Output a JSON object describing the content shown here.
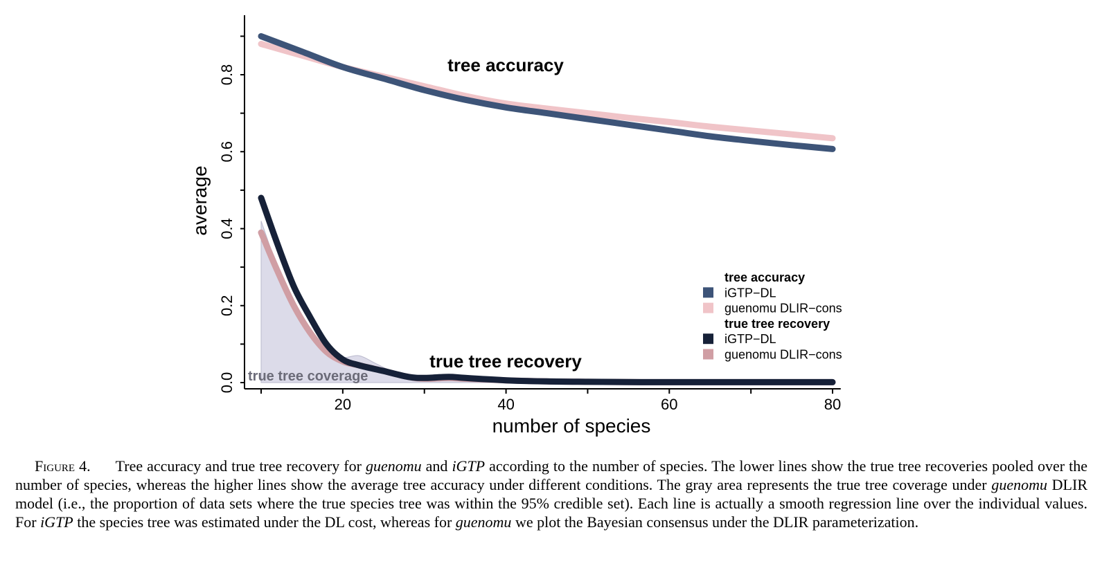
{
  "chart_data": {
    "type": "line",
    "xlabel": "number of species",
    "ylabel": "average",
    "xlim": [
      8,
      81
    ],
    "ylim": [
      -0.02,
      0.98
    ],
    "xticks": [
      10,
      20,
      30,
      40,
      50,
      60,
      70,
      80
    ],
    "xtick_labels": [
      "",
      "20",
      "",
      "40",
      "",
      "60",
      "",
      "80"
    ],
    "yticks": [
      0.0,
      0.1,
      0.2,
      0.3,
      0.4,
      0.5,
      0.6,
      0.7,
      0.8,
      0.9
    ],
    "ytick_labels": [
      "0.0",
      "",
      "0.2",
      "",
      "0.4",
      "",
      "0.6",
      "",
      "0.8",
      ""
    ],
    "grid": false,
    "legend_position": "right",
    "annotations": {
      "tree_accuracy": "tree accuracy",
      "true_tree_recovery": "true tree recovery",
      "true_tree_coverage": "true tree coverage"
    },
    "legend": {
      "group1_title": "tree accuracy",
      "group2_title": "true tree recovery"
    },
    "series": [
      {
        "name": "iGTP−DL",
        "group": "tree accuracy",
        "color": "#3d5478",
        "x": [
          10,
          15,
          20,
          25,
          30,
          35,
          40,
          45,
          50,
          55,
          60,
          65,
          70,
          75,
          80
        ],
        "y": [
          0.9,
          0.86,
          0.82,
          0.79,
          0.76,
          0.735,
          0.715,
          0.7,
          0.685,
          0.67,
          0.655,
          0.64,
          0.628,
          0.617,
          0.607
        ]
      },
      {
        "name": "guenomu DLIR−cons",
        "group": "tree accuracy",
        "color": "#f0c4c8",
        "x": [
          10,
          15,
          20,
          25,
          30,
          35,
          40,
          45,
          50,
          55,
          60,
          65,
          70,
          75,
          80
        ],
        "y": [
          0.88,
          0.85,
          0.82,
          0.795,
          0.77,
          0.745,
          0.725,
          0.712,
          0.7,
          0.688,
          0.677,
          0.665,
          0.655,
          0.645,
          0.635
        ]
      },
      {
        "name": "iGTP−DL",
        "group": "true tree recovery",
        "color": "#162138",
        "x": [
          10,
          12,
          14,
          16,
          18,
          20,
          22,
          25,
          28,
          30,
          33,
          35,
          40,
          45,
          50,
          60,
          70,
          80
        ],
        "y": [
          0.48,
          0.36,
          0.25,
          0.17,
          0.1,
          0.06,
          0.045,
          0.03,
          0.015,
          0.012,
          0.015,
          0.012,
          0.006,
          0.003,
          0.002,
          0.001,
          0.001,
          0.001
        ]
      },
      {
        "name": "guenomu DLIR−cons",
        "group": "true tree recovery",
        "color": "#d09ea4",
        "x": [
          10,
          12,
          14,
          16,
          18,
          20,
          22,
          25,
          28,
          30,
          33,
          35,
          40,
          45,
          50,
          60,
          70,
          80
        ],
        "y": [
          0.39,
          0.29,
          0.2,
          0.13,
          0.08,
          0.055,
          0.045,
          0.03,
          0.015,
          0.01,
          0.012,
          0.01,
          0.006,
          0.003,
          0.002,
          0.001,
          0.001,
          0.001
        ]
      }
    ],
    "area": {
      "name": "true tree coverage",
      "color": "#dcdbe9",
      "x": [
        10,
        12,
        14,
        16,
        18,
        20,
        22,
        24,
        26,
        28,
        30,
        35,
        40,
        45,
        50,
        60,
        70,
        80
      ],
      "y": [
        0.42,
        0.3,
        0.2,
        0.13,
        0.08,
        0.065,
        0.07,
        0.05,
        0.03,
        0.02,
        0.015,
        0.01,
        0.006,
        0.003,
        0.002,
        0.001,
        0.001,
        0.001
      ]
    }
  },
  "caption": {
    "label": "Figure 4.",
    "segments": [
      {
        "text": "Tree accuracy and true tree recovery for ",
        "italic": false
      },
      {
        "text": "guenomu",
        "italic": true
      },
      {
        "text": " and ",
        "italic": false
      },
      {
        "text": "iGTP",
        "italic": true
      },
      {
        "text": " according to the number of species. The lower lines show the true tree recoveries pooled over the number of species, whereas the higher lines show the average tree accuracy under different conditions. The gray area represents the true tree coverage under ",
        "italic": false
      },
      {
        "text": "guenomu",
        "italic": true
      },
      {
        "text": " DLIR model (i.e., the proportion of data sets where the true species tree was within the 95% credible set). Each line is actually a smooth regression line over the individual values. For ",
        "italic": false
      },
      {
        "text": "iGTP",
        "italic": true
      },
      {
        "text": " the species tree was estimated under the DL cost, whereas for ",
        "italic": false
      },
      {
        "text": "guenomu",
        "italic": true
      },
      {
        "text": " we plot the  Bayesian consensus under the DLIR parameterization.",
        "italic": false
      }
    ]
  }
}
